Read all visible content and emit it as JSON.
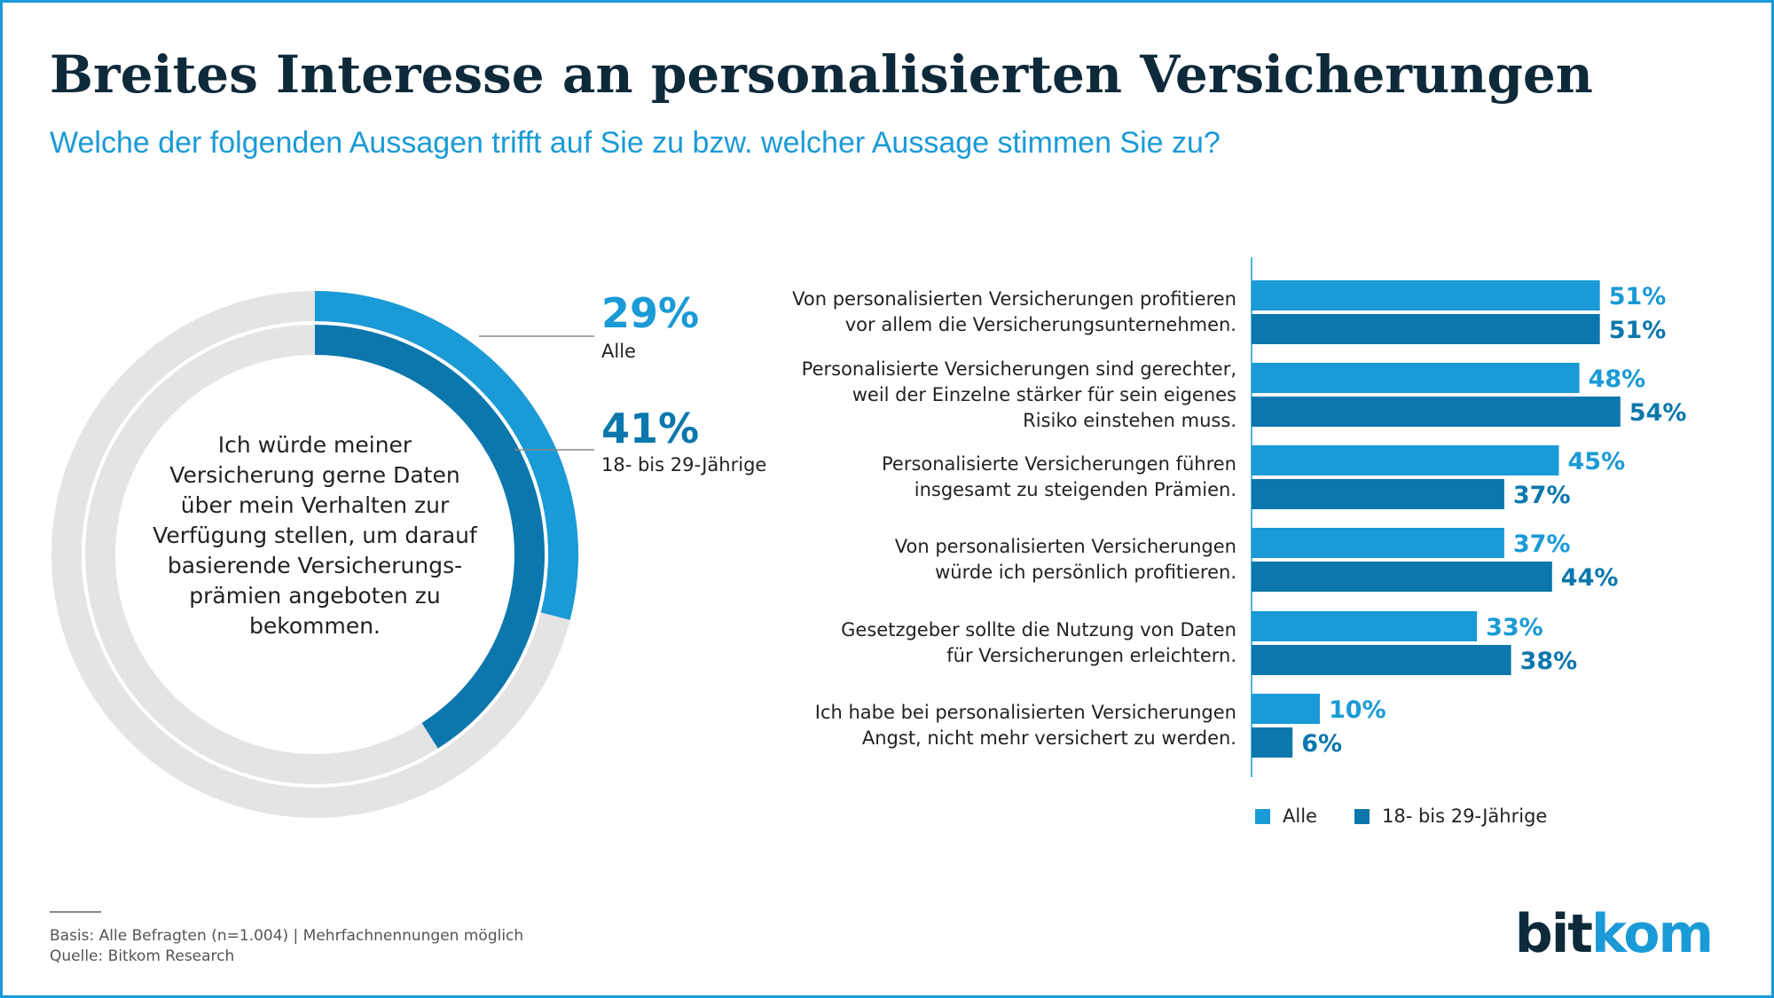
{
  "header": {
    "title": "Breites Interesse an personalisierten Versicherungen",
    "subtitle": "Welche der folgenden Aussagen trifft auf Sie zu bzw. welcher Aussage stimmen Sie zu?"
  },
  "colors": {
    "alle": "#1a9ad6",
    "jung": "#0b77ad",
    "ring_bg": "#e4e4e4",
    "text": "#222222"
  },
  "donut": {
    "center_text_lines": [
      "Ich würde meiner",
      "Versicherung gerne Daten",
      "über mein Verhalten zur",
      "Verfügung stellen, um darauf",
      "basierende Versicherungs-",
      "prämien angeboten zu",
      "bekommen."
    ],
    "outer": {
      "value": 29,
      "pct_label": "29%",
      "group_label": "Alle"
    },
    "inner": {
      "value": 41,
      "pct_label": "41%",
      "group_label": "18- bis 29-Jährige"
    }
  },
  "chart_data": {
    "type": "bar",
    "orientation": "horizontal",
    "categories": [
      [
        "Von personalisierten Versicherungen profitieren",
        "vor allem die Versicherungsunternehmen."
      ],
      [
        "Personalisierte Versicherungen sind gerechter,",
        "weil der Einzelne stärker für sein eigenes",
        "Risiko einstehen muss."
      ],
      [
        "Personalisierte Versicherungen führen",
        "insgesamt zu steigenden Prämien."
      ],
      [
        "Von personalisierten Versicherungen",
        "würde ich persönlich profitieren."
      ],
      [
        "Gesetzgeber sollte die Nutzung von Daten",
        "für Versicherungen erleichtern."
      ],
      [
        "Ich habe bei personalisierten Versicherungen",
        "Angst, nicht mehr versichert zu werden."
      ]
    ],
    "series": [
      {
        "name": "Alle",
        "values": [
          51,
          48,
          45,
          37,
          33,
          10
        ],
        "labels": [
          "51%",
          "48%",
          "45%",
          "37%",
          "33%",
          "10%"
        ]
      },
      {
        "name": "18- bis 29-Jährige",
        "values": [
          51,
          54,
          37,
          44,
          38,
          6
        ],
        "labels": [
          "51%",
          "54%",
          "37%",
          "44%",
          "38%",
          "6%"
        ]
      }
    ],
    "xlim": [
      0,
      100
    ],
    "legend": "bottom"
  },
  "footer": {
    "basis": "Basis: Alle Befragten (n=1.004) | Mehrfachnennungen möglich",
    "quelle": "Quelle: Bitkom Research"
  },
  "logo": {
    "text_a": "bit",
    "text_b": "kom"
  }
}
